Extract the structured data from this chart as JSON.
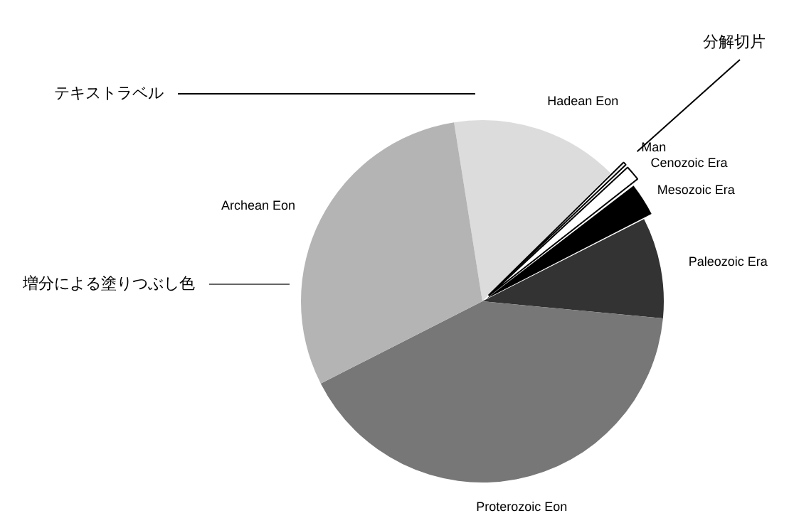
{
  "chart_data": {
    "type": "pie",
    "categories": [
      "Hadean Eon",
      "Man",
      "Cenozoic Era",
      "Mesozoic Era",
      "Paleozoic Era",
      "Proterozoic Eon",
      "Archean Eon"
    ],
    "values": [
      15,
      0.5,
      1.5,
      3,
      9,
      41,
      30
    ],
    "colors": [
      "#dcdcdc",
      "#ffffff",
      "#ffffff",
      "#000000",
      "#333333",
      "#777777",
      "#b4b4b4"
    ],
    "annotations": [
      "テキストラベル",
      "増分による塗りつぶし色",
      "分解切片"
    ]
  }
}
